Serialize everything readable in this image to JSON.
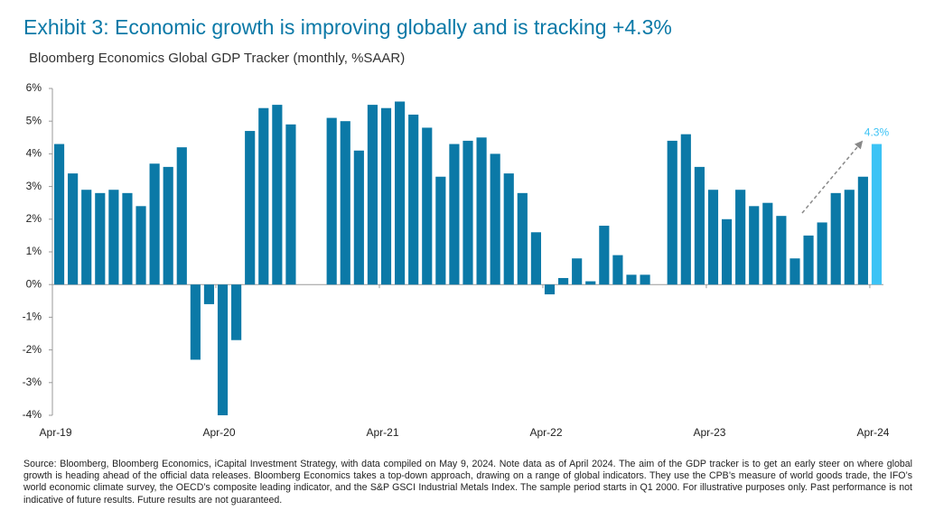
{
  "title": "Exhibit 3: Economic growth is improving globally and is tracking +4.3%",
  "footnote": "Source: Bloomberg, Bloomberg Economics, iCapital Investment Strategy, with data compiled on May 9, 2024. Note data as of April 2024. The aim of the GDP tracker is to get an early steer on where global growth is heading ahead of the official data releases. Bloomberg Economics takes a top-down approach, drawing on a range of global indicators. They use the CPB’s measure of world goods trade, the IFO’s world economic climate survey, the OECD’s composite leading indicator, and the S&P GSCI Industrial Metals Index. The sample period starts in Q1 2000. For illustrative purposes only. Past performance is not indicative of future results. Future results are not guaranteed.",
  "chart_data": {
    "type": "bar",
    "subtitle": "Bloomberg Economics Global GDP Tracker (monthly, %SAAR)",
    "categories": [
      "Apr-19",
      null,
      null,
      null,
      null,
      null,
      null,
      null,
      null,
      null,
      null,
      null,
      "Apr-20",
      null,
      null,
      null,
      null,
      null,
      null,
      null,
      null,
      null,
      null,
      null,
      "Apr-21",
      null,
      null,
      null,
      null,
      null,
      null,
      null,
      null,
      null,
      null,
      null,
      "Apr-22",
      null,
      null,
      null,
      null,
      null,
      null,
      null,
      null,
      null,
      null,
      null,
      "Apr-23",
      null,
      null,
      null,
      null,
      null,
      null,
      null,
      null,
      null,
      null,
      null,
      "Apr-24"
    ],
    "values": [
      4.3,
      3.4,
      2.9,
      2.8,
      2.9,
      2.8,
      2.4,
      3.7,
      3.6,
      4.2,
      -2.3,
      -0.6,
      -4.0,
      -1.7,
      4.7,
      5.4,
      5.5,
      4.9,
      null,
      null,
      5.1,
      5.0,
      4.1,
      5.5,
      5.4,
      5.6,
      5.2,
      4.8,
      3.3,
      4.3,
      4.4,
      4.5,
      4.0,
      3.4,
      2.8,
      1.6,
      -0.3,
      0.2,
      0.8,
      0.1,
      1.8,
      0.9,
      0.3,
      0.3,
      null,
      4.4,
      4.6,
      3.6,
      2.9,
      2.0,
      2.9,
      2.4,
      2.5,
      2.1,
      0.8,
      1.5,
      1.9,
      2.8,
      2.9,
      3.3,
      4.3
    ],
    "value_labels": [
      null,
      null,
      null,
      null,
      null,
      null,
      null,
      null,
      null,
      null,
      null,
      null,
      null,
      null,
      null,
      null,
      null,
      null,
      null,
      null,
      null,
      null,
      null,
      null,
      null,
      null,
      null,
      null,
      null,
      null,
      null,
      null,
      null,
      null,
      null,
      null,
      null,
      null,
      null,
      null,
      null,
      null,
      null,
      null,
      null,
      null,
      null,
      null,
      null,
      null,
      null,
      null,
      null,
      null,
      null,
      null,
      null,
      null,
      null,
      null,
      "4.3%"
    ],
    "color": "#0b79a7",
    "highlight_color": "#3cc3f5",
    "ylim": [
      -4,
      6
    ],
    "yticks": [
      {
        "value": -4,
        "label": "-4%"
      },
      {
        "value": -3,
        "label": "-3%"
      },
      {
        "value": -2,
        "label": "-2%"
      },
      {
        "value": -1,
        "label": "-1%"
      },
      {
        "value": 0,
        "label": "0%"
      },
      {
        "value": 1,
        "label": "1%"
      },
      {
        "value": 2,
        "label": "2%"
      },
      {
        "value": 3,
        "label": "3%"
      },
      {
        "value": 4,
        "label": "4%"
      },
      {
        "value": 5,
        "label": "5%"
      },
      {
        "value": 6,
        "label": "6%"
      }
    ],
    "grid": false
  }
}
